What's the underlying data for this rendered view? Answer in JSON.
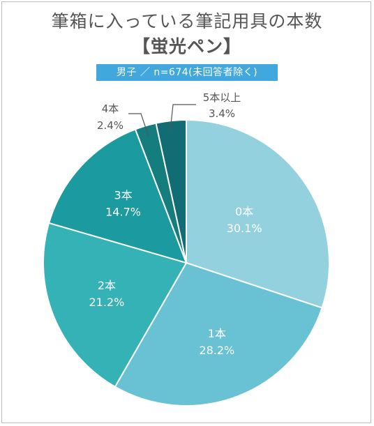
{
  "title_line1": "筆箱に入っている筆記用具の本数",
  "title_line2": "【蛍光ペン】",
  "subtitle": "男子 ／ n=674(未回答者除く)",
  "chart_data": {
    "type": "pie",
    "title": "筆箱に入っている筆記用具の本数【蛍光ペン】",
    "subtitle": "男子 ／ n=674(未回答者除く)",
    "start": "12 o'clock",
    "direction": "clockwise",
    "slices": [
      {
        "label": "0本",
        "value": 30.1,
        "value_label": "30.1%",
        "color": "#94d1de",
        "label_color": "#ffffff",
        "label_placement": "inside"
      },
      {
        "label": "1本",
        "value": 28.2,
        "value_label": "28.2%",
        "color": "#68c2d3",
        "label_color": "#ffffff",
        "label_placement": "inside"
      },
      {
        "label": "2本",
        "value": 21.2,
        "value_label": "21.2%",
        "color": "#35b2b5",
        "label_color": "#ffffff",
        "label_placement": "inside"
      },
      {
        "label": "3本",
        "value": 14.7,
        "value_label": "14.7%",
        "color": "#1b9aa0",
        "label_color": "#ffffff",
        "label_placement": "inside"
      },
      {
        "label": "4本",
        "value": 2.4,
        "value_label": "2.4%",
        "color": "#167d7f",
        "label_color": "#555555",
        "label_placement": "outside"
      },
      {
        "label": "5本以上",
        "value": 3.4,
        "value_label": "3.4%",
        "color": "#116d73",
        "label_color": "#555555",
        "label_placement": "outside"
      }
    ]
  }
}
